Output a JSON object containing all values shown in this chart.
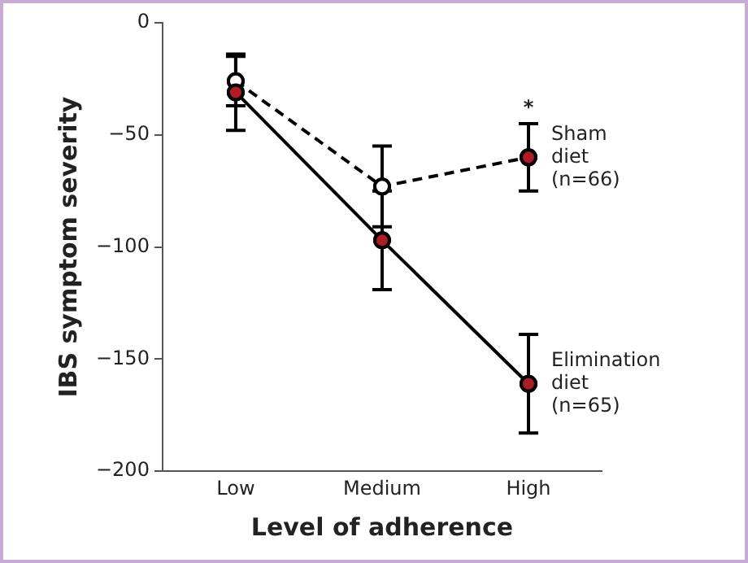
{
  "chart_data": {
    "type": "line",
    "xlabel": "Level of adherence",
    "ylabel": "IBS symptom severity",
    "categories": [
      "Low",
      "Medium",
      "High"
    ],
    "series": [
      {
        "name": "Sham diet (n=66)",
        "colors": [
          "#ffffff",
          "#ffffff",
          "#b01c24"
        ],
        "line_style": "dashed",
        "values": [
          -26,
          -73,
          -60
        ],
        "errors": [
          11,
          18,
          15
        ]
      },
      {
        "name": "Elimination diet (n=65)",
        "color": "#b01c24",
        "line_style": "solid",
        "values": [
          -31,
          -97,
          -161
        ],
        "errors": [
          17,
          22,
          22
        ]
      }
    ],
    "ylim": [
      -200,
      0
    ],
    "yticks": [
      -200,
      -150,
      -100,
      -50,
      0
    ],
    "grid": false,
    "legend": false,
    "marker": "circle",
    "annotations": [
      {
        "text": "*",
        "x": "High",
        "y": -60
      }
    ]
  }
}
